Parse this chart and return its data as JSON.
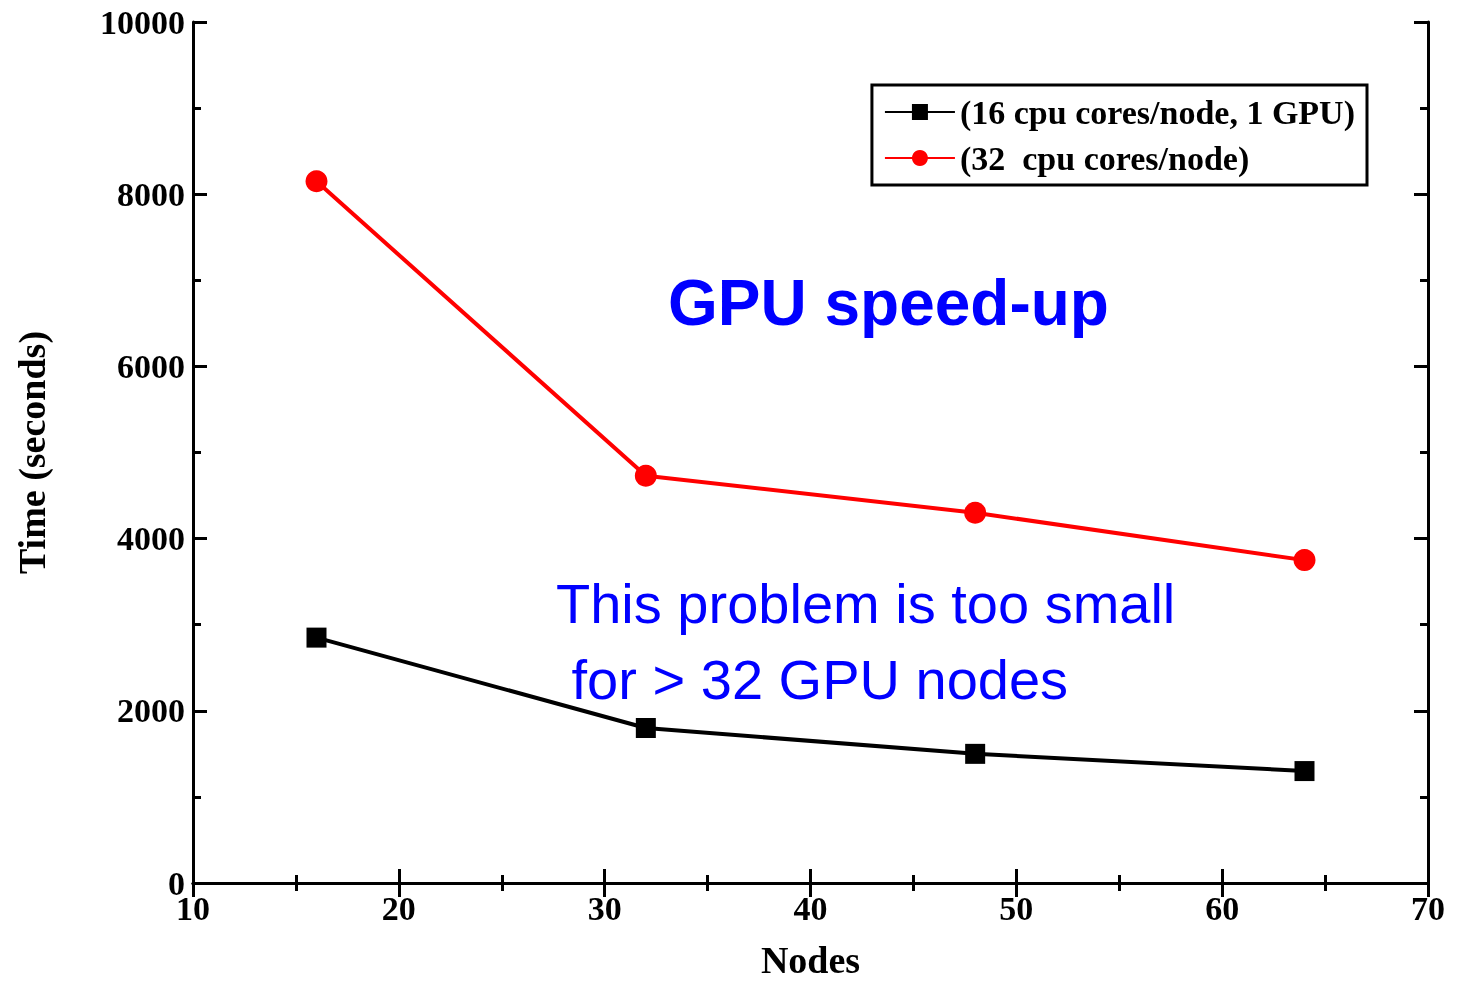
{
  "chart_data": {
    "type": "line",
    "xlabel": "Nodes",
    "ylabel": "Time (seconds)",
    "x": [
      16,
      32,
      48,
      64
    ],
    "series": [
      {
        "name": "(16 cpu cores/node, 1 GPU)",
        "color": "#000000",
        "marker": "square",
        "values": [
          2850,
          1800,
          1500,
          1300
        ]
      },
      {
        "name": "(32  cpu cores/node)",
        "color": "#ff0000",
        "marker": "circle",
        "values": [
          8150,
          4730,
          4300,
          3750
        ]
      }
    ],
    "xlim": [
      10,
      70
    ],
    "xticks": [
      10,
      20,
      30,
      40,
      50,
      60,
      70
    ],
    "ylim": [
      0,
      10000
    ],
    "yticks": [
      0,
      2000,
      4000,
      6000,
      8000,
      10000
    ],
    "grid": false,
    "legend": "top right",
    "line_style": "solid",
    "annotations": [
      "GPU speed-up",
      "This problem is too small\n for > 32 GPU nodes"
    ]
  }
}
